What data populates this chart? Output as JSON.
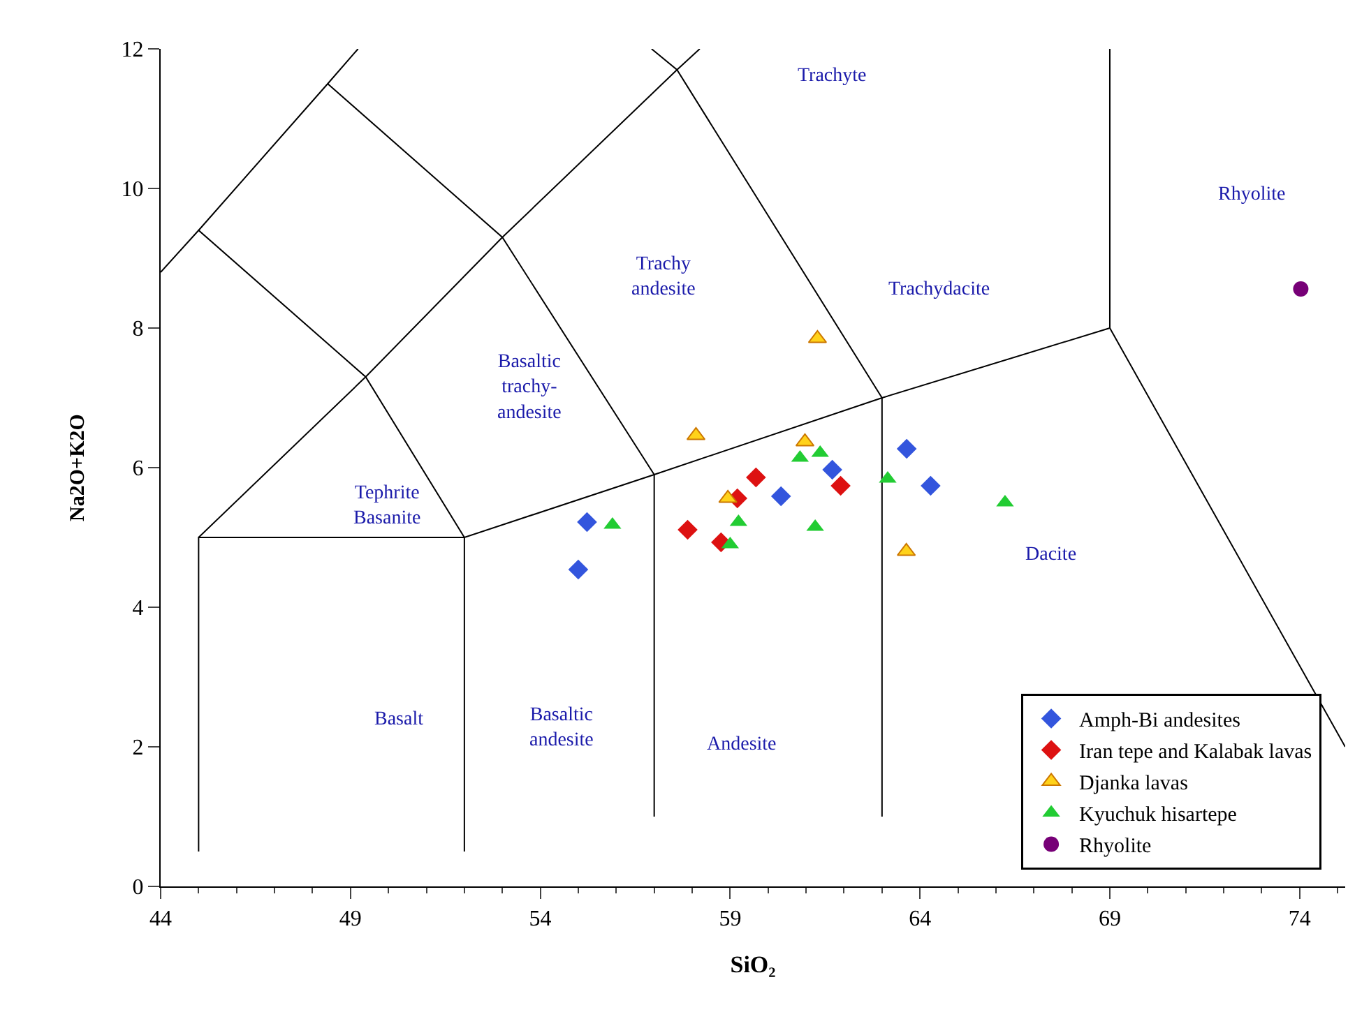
{
  "chart_data": {
    "type": "scatter",
    "xlabel": "SiO₂",
    "ylabel": "Na2O+K2O",
    "xlim": [
      44,
      75.2
    ],
    "xticks": [
      44,
      49,
      54,
      59,
      64,
      69,
      74
    ],
    "ylim": [
      0,
      12
    ],
    "yticks": [
      0,
      2,
      4,
      6,
      8,
      10,
      12
    ],
    "grid": false,
    "legend": "bottom right",
    "series": [
      {
        "name": "Amph-Bi andesites",
        "color": "#3355dd",
        "marker": "diamond",
        "x": [
          55.23,
          55.0,
          60.34,
          61.69,
          63.65,
          64.28
        ],
        "values": [
          5.22,
          4.54,
          5.59,
          5.97,
          6.27,
          5.74
        ]
      },
      {
        "name": "Iran tepe and Kalabak lavas",
        "color": "#dd1111",
        "marker": "diamond",
        "x": [
          57.88,
          58.76,
          59.19,
          59.68,
          61.91
        ],
        "values": [
          5.11,
          4.93,
          5.56,
          5.86,
          5.74
        ]
      },
      {
        "name": "Djanka lavas",
        "color": "#ffd21a",
        "marker": "triangle",
        "x": [
          61.3,
          58.1,
          58.94,
          60.97,
          63.64
        ],
        "values": [
          7.85,
          6.46,
          5.56,
          6.37,
          4.8
        ]
      },
      {
        "name": "Kyuchuk hisartepe",
        "color": "#22cc33",
        "marker": "triangle",
        "x": [
          55.9,
          59.0,
          59.22,
          60.84,
          61.37,
          61.24,
          63.15,
          66.24
        ],
        "values": [
          5.18,
          4.9,
          5.22,
          6.14,
          6.21,
          5.15,
          5.84,
          5.5
        ]
      },
      {
        "name": "Rhyolite",
        "color": "#770077",
        "marker": "circle",
        "x": [
          74.03
        ],
        "values": [
          8.56
        ]
      },
      {
        "type": "line",
        "color": "#000000",
        "marker": "none",
        "x": [
          45,
          45,
          52,
          57,
          63,
          69,
          75.2
        ],
        "values": [
          0.5,
          5,
          5,
          5.9,
          7,
          8,
          2.0
        ]
      },
      {
        "type": "line",
        "color": "#000000",
        "marker": "none",
        "x": [
          52,
          52
        ],
        "values": [
          0.5,
          5
        ]
      },
      {
        "type": "line",
        "color": "#000000",
        "marker": "none",
        "x": [
          57,
          57
        ],
        "values": [
          1,
          5.9
        ]
      },
      {
        "type": "line",
        "color": "#000000",
        "marker": "none",
        "x": [
          63,
          63
        ],
        "values": [
          1,
          7
        ]
      },
      {
        "type": "line",
        "color": "#000000",
        "marker": "none",
        "x": [
          69,
          69
        ],
        "values": [
          8,
          12
        ]
      },
      {
        "type": "line",
        "color": "#000000",
        "marker": "none",
        "x": [
          45,
          49.4,
          53,
          57.6,
          58.2
        ],
        "values": [
          5,
          7.3,
          9.3,
          11.7,
          12
        ]
      },
      {
        "type": "line",
        "color": "#000000",
        "marker": "none",
        "x": [
          52,
          49.4,
          45,
          44
        ],
        "values": [
          5,
          7.3,
          9.4,
          8.8
        ]
      },
      {
        "type": "line",
        "color": "#000000",
        "marker": "none",
        "x": [
          45,
          48.4,
          49.2
        ],
        "values": [
          9.4,
          11.5,
          12
        ]
      },
      {
        "type": "line",
        "color": "#000000",
        "marker": "none",
        "x": [
          48.4,
          53,
          57
        ],
        "values": [
          11.5,
          9.3,
          5.9
        ]
      },
      {
        "type": "line",
        "color": "#000000",
        "marker": "none",
        "x": [
          56.93,
          57.6,
          63
        ],
        "values": [
          12,
          11.7,
          7
        ]
      }
    ],
    "annotations": [
      "Trachyte",
      "Rhyolite",
      "Trachy\nandesite",
      "Trachydacite",
      "Basaltic\ntrachy-\nandesite",
      "Tephrite\nBasanite",
      "Dacite",
      "Basalt",
      "Basaltic\nandesite",
      "Andesite"
    ]
  }
}
